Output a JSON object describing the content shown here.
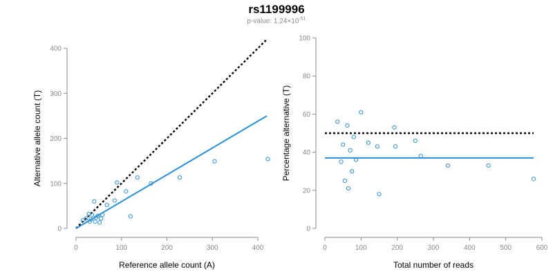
{
  "title": "rs1199996",
  "subtitle": {
    "label": "p-value:",
    "mantissa": "1.24",
    "times": "×10",
    "exponent": "-51"
  },
  "colors": {
    "points": "#2b8fd8",
    "fit_line": "#2b8fd8",
    "expected_line": "#000000",
    "axis": "#888888",
    "tick_text": "#888888"
  },
  "chart_data": [
    {
      "type": "scatter",
      "xlabel": "Reference allele count (A)",
      "ylabel": "Alternative allele count (T)",
      "xlim": [
        0,
        420
      ],
      "ylim": [
        0,
        400
      ],
      "x_ticks": [
        0,
        100,
        200,
        300,
        400
      ],
      "y_ticks": [
        0,
        100,
        200,
        300,
        400
      ],
      "grid": false,
      "points": [
        {
          "x": 15,
          "y": 18
        },
        {
          "x": 22,
          "y": 22
        },
        {
          "x": 28,
          "y": 32
        },
        {
          "x": 30,
          "y": 15
        },
        {
          "x": 33,
          "y": 20
        },
        {
          "x": 35,
          "y": 30
        },
        {
          "x": 40,
          "y": 60
        },
        {
          "x": 42,
          "y": 15
        },
        {
          "x": 44,
          "y": 24
        },
        {
          "x": 48,
          "y": 28
        },
        {
          "x": 52,
          "y": 13
        },
        {
          "x": 55,
          "y": 22
        },
        {
          "x": 58,
          "y": 30
        },
        {
          "x": 68,
          "y": 52
        },
        {
          "x": 85,
          "y": 62
        },
        {
          "x": 90,
          "y": 102
        },
        {
          "x": 110,
          "y": 82
        },
        {
          "x": 120,
          "y": 27
        },
        {
          "x": 135,
          "y": 113
        },
        {
          "x": 165,
          "y": 100
        },
        {
          "x": 228,
          "y": 113
        },
        {
          "x": 305,
          "y": 149
        },
        {
          "x": 422,
          "y": 154
        }
      ],
      "lines": [
        {
          "kind": "expected",
          "style": "dotted",
          "x": [
            0,
            420
          ],
          "y": [
            0,
            420
          ]
        },
        {
          "kind": "fit",
          "style": "solid",
          "x": [
            0,
            420
          ],
          "y": [
            0,
            250
          ]
        }
      ]
    },
    {
      "type": "scatter",
      "xlabel": "Total number of reads",
      "ylabel": "Percentage alternative (T)",
      "xlim": [
        0,
        600
      ],
      "ylim": [
        0,
        100
      ],
      "x_ticks": [
        0,
        100,
        200,
        300,
        400,
        500,
        600
      ],
      "y_ticks": [
        0,
        20,
        40,
        60,
        80,
        100
      ],
      "grid": false,
      "points": [
        {
          "x": 35,
          "y": 56
        },
        {
          "x": 45,
          "y": 35
        },
        {
          "x": 50,
          "y": 44
        },
        {
          "x": 55,
          "y": 25
        },
        {
          "x": 62,
          "y": 54
        },
        {
          "x": 65,
          "y": 21
        },
        {
          "x": 70,
          "y": 41
        },
        {
          "x": 75,
          "y": 30
        },
        {
          "x": 80,
          "y": 48
        },
        {
          "x": 86,
          "y": 36
        },
        {
          "x": 100,
          "y": 61
        },
        {
          "x": 120,
          "y": 45
        },
        {
          "x": 145,
          "y": 43
        },
        {
          "x": 150,
          "y": 18
        },
        {
          "x": 192,
          "y": 53
        },
        {
          "x": 195,
          "y": 43
        },
        {
          "x": 250,
          "y": 46
        },
        {
          "x": 265,
          "y": 38
        },
        {
          "x": 340,
          "y": 33
        },
        {
          "x": 452,
          "y": 33
        },
        {
          "x": 577,
          "y": 26
        }
      ],
      "lines": [
        {
          "kind": "expected",
          "style": "dotted",
          "x": [
            0,
            577
          ],
          "y": [
            50,
            50
          ]
        },
        {
          "kind": "fit",
          "style": "solid",
          "x": [
            0,
            577
          ],
          "y": [
            37,
            37
          ]
        }
      ]
    }
  ]
}
